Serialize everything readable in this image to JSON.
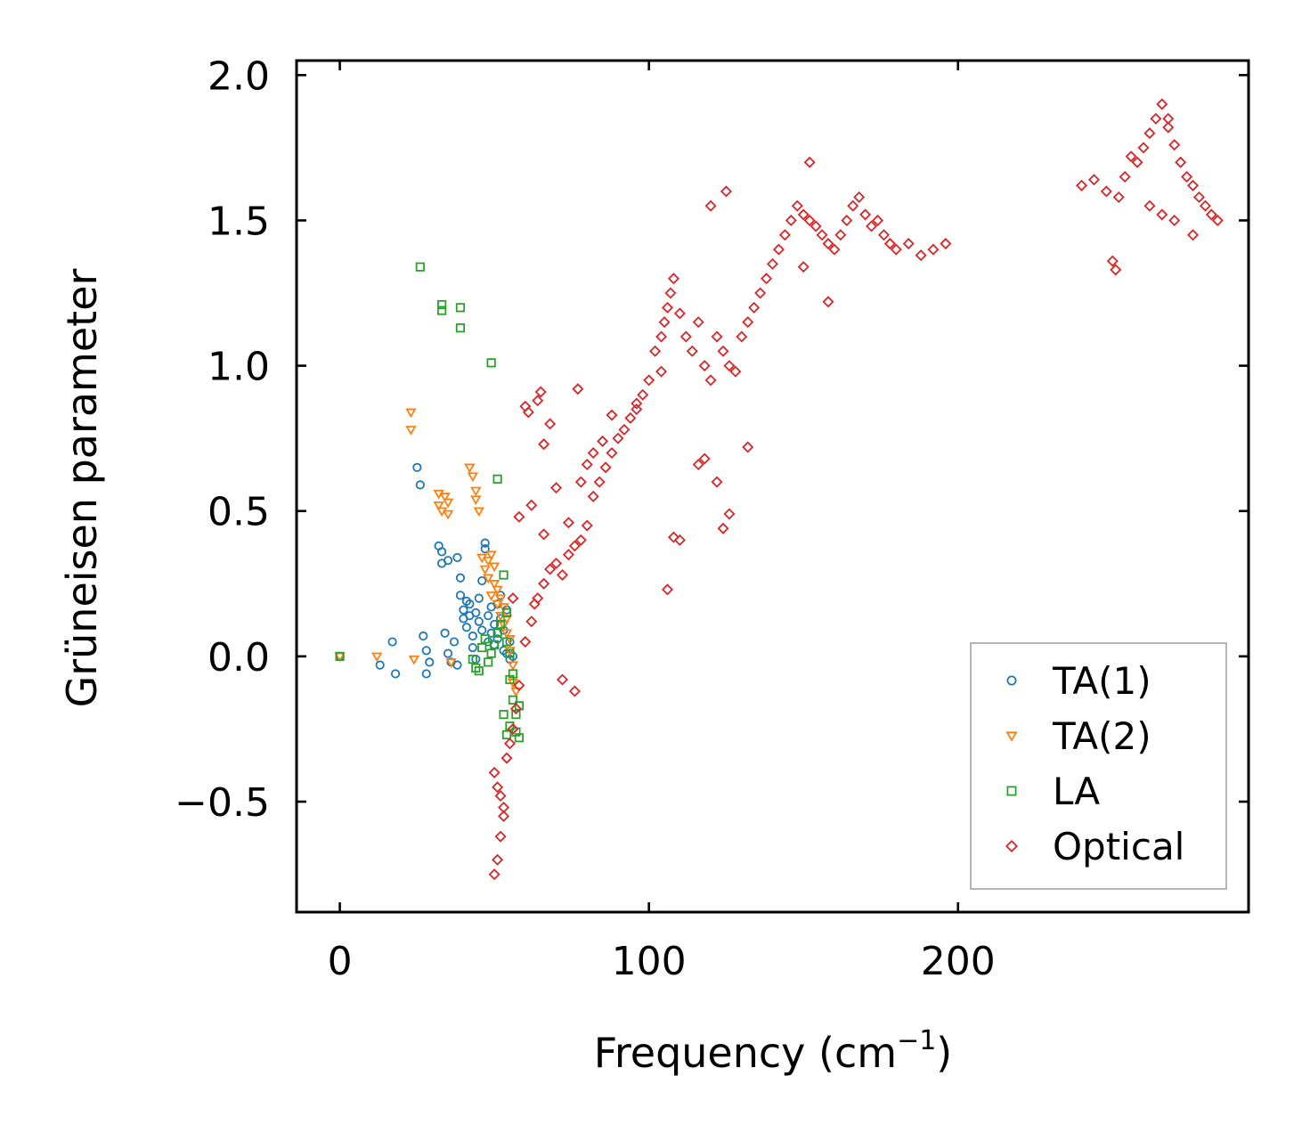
{
  "chart_data": {
    "type": "scatter",
    "title": "",
    "xlabel": "Frequency (cm",
    "xlabel_sup": "−1",
    "xlabel_close": ")",
    "ylabel": "Grüneisen parameter",
    "xlim": [
      -14,
      294
    ],
    "ylim": [
      -0.88,
      2.05
    ],
    "xticks": [
      0,
      100,
      200
    ],
    "xtick_labels": [
      "0",
      "100",
      "200"
    ],
    "yticks": [
      -0.5,
      0.0,
      0.5,
      1.0,
      1.5,
      2.0
    ],
    "ytick_labels": [
      "−0.5",
      "0.0",
      "0.5",
      "1.0",
      "1.5",
      "2.0"
    ],
    "grid": false,
    "legend_position": "bottom-right",
    "series": [
      {
        "name": "TA(1)",
        "marker": "circle",
        "color": "#1f77b4",
        "x": [
          0,
          13,
          17,
          18,
          25,
          26,
          27,
          28,
          28,
          29,
          32,
          33,
          33,
          34,
          35,
          35,
          36,
          37,
          38,
          38,
          39,
          39,
          40,
          40,
          41,
          41,
          42,
          42,
          43,
          43,
          44,
          44,
          45,
          45,
          46,
          46,
          47,
          47,
          48,
          48,
          49,
          49,
          50,
          50,
          51,
          51,
          52,
          52,
          53,
          53,
          54,
          54,
          55,
          55,
          56
        ],
        "y": [
          0.0,
          -0.03,
          0.05,
          -0.06,
          0.65,
          0.59,
          0.07,
          0.02,
          -0.06,
          -0.02,
          0.38,
          0.36,
          0.32,
          0.08,
          0.01,
          0.33,
          -0.02,
          0.05,
          0.34,
          -0.03,
          0.27,
          0.21,
          0.16,
          0.13,
          0.19,
          0.1,
          0.18,
          0.14,
          0.07,
          0.03,
          0.15,
          -0.01,
          0.2,
          0.12,
          0.26,
          0.09,
          0.39,
          0.37,
          0.14,
          0.05,
          0.08,
          0.17,
          0.04,
          0.11,
          0.18,
          0.06,
          0.21,
          0.13,
          0.09,
          0.02,
          0.16,
          0.01,
          0.05,
          -0.01,
          0.0
        ]
      },
      {
        "name": "TA(2)",
        "marker": "triangle-down",
        "color": "#ff7f0e",
        "x": [
          0,
          12,
          23,
          23,
          24,
          32,
          32,
          33,
          34,
          35,
          35,
          36,
          42,
          43,
          44,
          44,
          45,
          46,
          47,
          48,
          48,
          49,
          49,
          50,
          50,
          51,
          51,
          52,
          52,
          53,
          53,
          54,
          54,
          55,
          55,
          56,
          56,
          57
        ],
        "y": [
          0.0,
          0.0,
          0.84,
          0.78,
          -0.01,
          0.56,
          0.52,
          0.5,
          0.55,
          0.53,
          0.49,
          -0.02,
          0.65,
          0.62,
          0.57,
          0.54,
          0.5,
          0.34,
          0.3,
          0.33,
          0.27,
          0.35,
          0.21,
          0.31,
          0.25,
          0.23,
          0.18,
          0.2,
          0.14,
          0.17,
          0.11,
          0.13,
          0.08,
          0.06,
          0.02,
          -0.03,
          -0.09,
          -0.12
        ]
      },
      {
        "name": "LA",
        "marker": "square",
        "color": "#2ca02c",
        "x": [
          0,
          26,
          33,
          33,
          39,
          39,
          49,
          51,
          43,
          44,
          45,
          46,
          47,
          48,
          49,
          50,
          51,
          52,
          53,
          54,
          54,
          55,
          55,
          56,
          56,
          57,
          57,
          58,
          58,
          53,
          54,
          55
        ],
        "y": [
          0.0,
          1.34,
          1.21,
          1.19,
          1.2,
          1.13,
          1.01,
          0.61,
          -0.01,
          -0.04,
          -0.05,
          0.03,
          0.06,
          -0.02,
          0.01,
          0.04,
          0.08,
          0.11,
          0.28,
          0.15,
          0.05,
          0.01,
          -0.08,
          -0.06,
          -0.15,
          -0.2,
          -0.26,
          -0.17,
          -0.28,
          -0.2,
          -0.27,
          -0.24
        ]
      },
      {
        "name": "Optical",
        "marker": "diamond",
        "color": "#d62728",
        "x": [
          50,
          51,
          52,
          53,
          52,
          51,
          50,
          53,
          54,
          55,
          56,
          57,
          58,
          56,
          60,
          62,
          63,
          64,
          66,
          68,
          70,
          72,
          74,
          76,
          78,
          80,
          82,
          84,
          86,
          88,
          90,
          92,
          94,
          96,
          98,
          100,
          102,
          104,
          105,
          106,
          107,
          108,
          110,
          112,
          114,
          116,
          118,
          120,
          122,
          124,
          126,
          128,
          130,
          132,
          134,
          136,
          138,
          140,
          142,
          144,
          146,
          148,
          150,
          152,
          154,
          156,
          158,
          160,
          162,
          164,
          166,
          168,
          170,
          172,
          174,
          176,
          178,
          180,
          184,
          188,
          192,
          196,
          152,
          158,
          120,
          125,
          108,
          106,
          124,
          126,
          122,
          60,
          61,
          64,
          65,
          77,
          76,
          72,
          68,
          66,
          58,
          62,
          66,
          70,
          74,
          78,
          80,
          82,
          85,
          88,
          96,
          104,
          110,
          116,
          118,
          132,
          150,
          240,
          244,
          248,
          250,
          252,
          254,
          256,
          258,
          260,
          262,
          264,
          266,
          268,
          270,
          272,
          274,
          276,
          278,
          280,
          282,
          284,
          251,
          262,
          266,
          268,
          276,
          270
        ],
        "y": [
          -0.75,
          -0.7,
          -0.62,
          -0.55,
          -0.48,
          -0.45,
          -0.4,
          -0.52,
          -0.35,
          -0.3,
          -0.25,
          -0.18,
          -0.1,
          0.2,
          0.05,
          0.12,
          0.18,
          0.2,
          0.25,
          0.3,
          0.32,
          0.28,
          0.35,
          0.38,
          0.4,
          0.45,
          0.55,
          0.6,
          0.65,
          0.7,
          0.75,
          0.78,
          0.82,
          0.85,
          0.9,
          0.95,
          1.05,
          1.1,
          1.15,
          1.2,
          1.25,
          1.3,
          1.18,
          1.1,
          1.05,
          1.15,
          1.0,
          0.95,
          1.1,
          1.05,
          1.0,
          0.98,
          1.1,
          1.15,
          1.2,
          1.25,
          1.3,
          1.35,
          1.4,
          1.45,
          1.5,
          1.55,
          1.52,
          1.5,
          1.48,
          1.45,
          1.42,
          1.4,
          1.45,
          1.5,
          1.55,
          1.58,
          1.52,
          1.48,
          1.5,
          1.45,
          1.42,
          1.4,
          1.42,
          1.38,
          1.4,
          1.42,
          1.7,
          1.22,
          1.55,
          1.6,
          0.41,
          0.23,
          0.44,
          0.49,
          0.6,
          0.86,
          0.84,
          0.88,
          0.91,
          0.92,
          -0.12,
          -0.08,
          0.8,
          0.73,
          0.48,
          0.52,
          0.42,
          0.58,
          0.46,
          0.6,
          0.66,
          0.7,
          0.74,
          0.83,
          0.87,
          0.98,
          0.4,
          0.66,
          0.68,
          0.72,
          1.34,
          1.62,
          1.64,
          1.6,
          1.36,
          1.58,
          1.65,
          1.72,
          1.7,
          1.75,
          1.8,
          1.85,
          1.9,
          1.82,
          1.76,
          1.7,
          1.65,
          1.62,
          1.58,
          1.55,
          1.52,
          1.5,
          1.33,
          1.55,
          1.52,
          1.85,
          1.45,
          1.5
        ]
      }
    ]
  },
  "legend": {
    "items": [
      {
        "label": "TA(1)",
        "marker": "circle",
        "color": "#1f77b4"
      },
      {
        "label": "TA(2)",
        "marker": "triangle-down",
        "color": "#ff7f0e"
      },
      {
        "label": "LA",
        "marker": "square",
        "color": "#2ca02c"
      },
      {
        "label": "Optical",
        "marker": "diamond",
        "color": "#d62728"
      }
    ]
  }
}
